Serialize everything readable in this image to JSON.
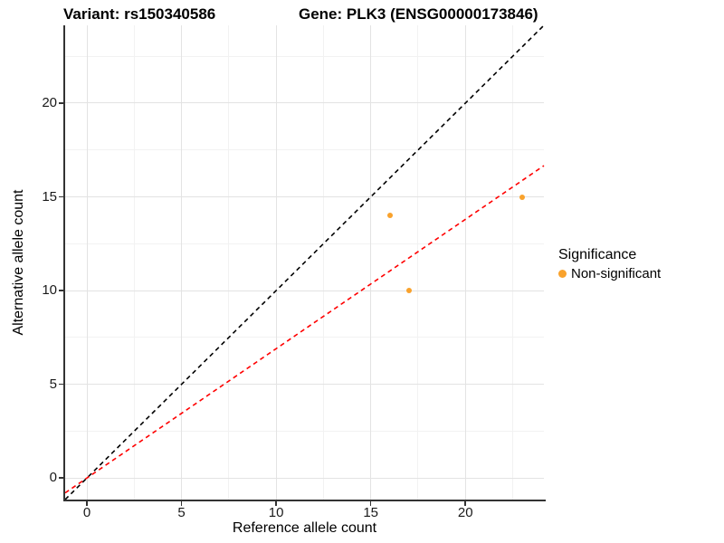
{
  "title_bar": {
    "variant_title": "Variant: rs150340586",
    "gene_title": "Gene: PLK3 (ENSG00000173846)"
  },
  "axes": {
    "x": {
      "label": "Reference allele count",
      "tick_labels": [
        "0",
        "5",
        "10",
        "15",
        "20"
      ]
    },
    "y": {
      "label": "Alternative allele count",
      "tick_labels": [
        "0",
        "5",
        "10",
        "15",
        "20"
      ]
    }
  },
  "legend": {
    "title": "Significance",
    "items": [
      {
        "label": "Non-significant",
        "marker_color": "#F9A22C"
      }
    ]
  },
  "colors": {
    "point": "#F9A22C",
    "identity_line": "#000000",
    "fit_line": "#FF0000",
    "grid_major": "#E3E3E3",
    "grid_minor": "#F2F2F2",
    "axis_line": "#333333",
    "text": "#000000"
  },
  "chart_data": {
    "type": "scatter",
    "title": "Variant: rs150340586 / Gene: PLK3 (ENSG00000173846)",
    "xlabel": "Reference allele count",
    "ylabel": "Alternative allele count",
    "xlim": [
      -1.15,
      24.15
    ],
    "ylim": [
      -1.15,
      24.15
    ],
    "major_ticks": [
      0,
      5,
      10,
      15,
      20
    ],
    "minor_ticks": [
      2.5,
      7.5,
      12.5,
      17.5,
      22.5
    ],
    "grid": "major+minor",
    "legend_position": "right",
    "series": [
      {
        "name": "Non-significant",
        "color": "#F9A22C",
        "points": [
          {
            "x": 16,
            "y": 14
          },
          {
            "x": 17,
            "y": 10
          },
          {
            "x": 23,
            "y": 15
          }
        ]
      }
    ],
    "lines": [
      {
        "name": "identity",
        "slope": 1.0,
        "intercept": 0,
        "color": "#000000",
        "style": "dashed"
      },
      {
        "name": "fit",
        "slope": 0.69,
        "intercept": 0,
        "color": "#FF0000",
        "style": "dashed"
      }
    ]
  }
}
